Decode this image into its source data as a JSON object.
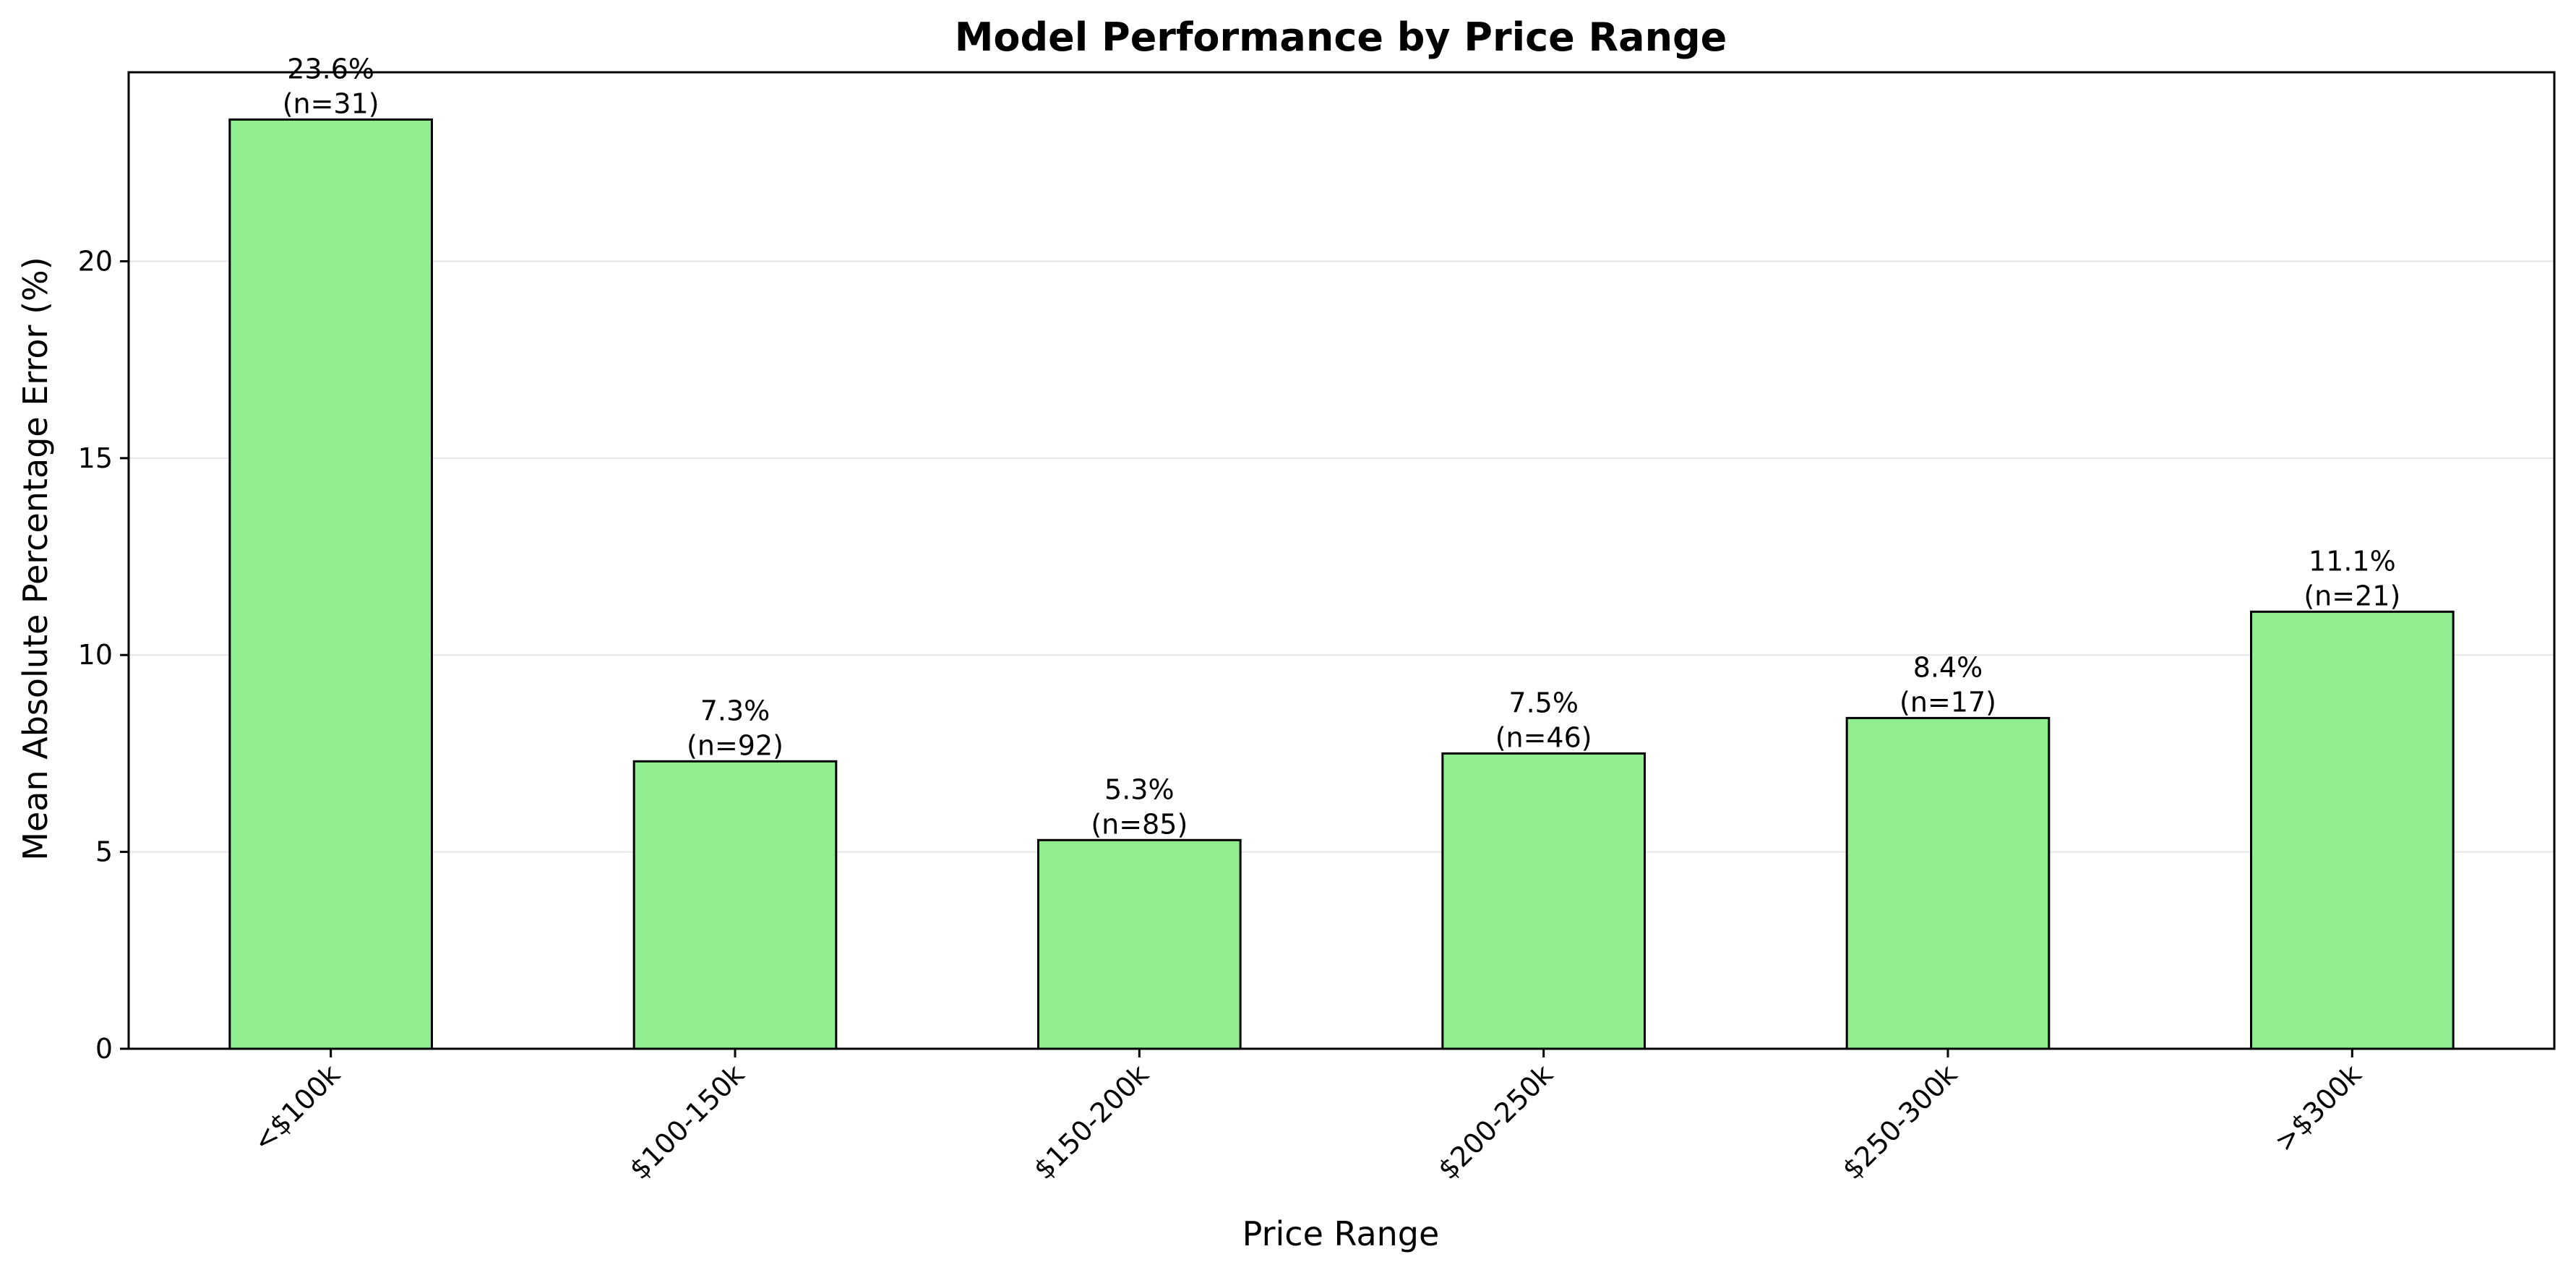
{
  "chart_data": {
    "type": "bar",
    "title": "Model Performance by Price Range",
    "xlabel": "Price Range",
    "ylabel": "Mean Absolute Percentage Error (%)",
    "categories": [
      "<$100k",
      "$100-150k",
      "$150-200k",
      "$200-250k",
      "$250-300k",
      ">$300k"
    ],
    "values": [
      23.6,
      7.3,
      5.3,
      7.5,
      8.4,
      11.1
    ],
    "value_labels": [
      "23.6%",
      "7.3%",
      "5.3%",
      "7.5%",
      "8.4%",
      "11.1%"
    ],
    "counts": [
      "(n=31)",
      "(n=92)",
      "(n=85)",
      "(n=46)",
      "(n=17)",
      "(n=21)"
    ],
    "ylim": [
      0,
      24.8
    ],
    "yticks": [
      0,
      5,
      10,
      15,
      20
    ],
    "grid": "horizontal",
    "legend": "none",
    "bar_color": "#90ee90",
    "bar_edge_color": "#000000",
    "grid_color": "#e6e6e6"
  }
}
